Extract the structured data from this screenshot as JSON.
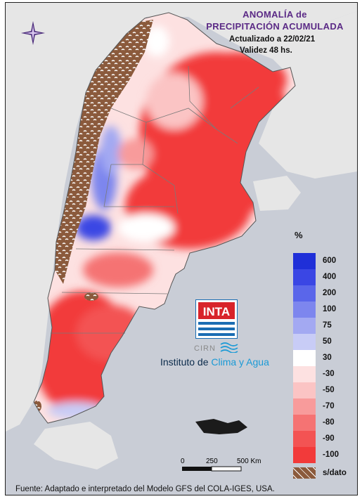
{
  "title": {
    "line1": "ANOMALÍA de",
    "line2": "PRECIPITACIÓN ACUMULADA",
    "updated": "Actualizado a 22/02/21",
    "validity": "Validez 48 hs."
  },
  "legend": {
    "unit": "%",
    "entries": [
      {
        "label": "600",
        "color": "#1f2fd8"
      },
      {
        "label": "400",
        "color": "#3a46e4"
      },
      {
        "label": "200",
        "color": "#5a66ea"
      },
      {
        "label": "100",
        "color": "#7d86ee"
      },
      {
        "label": "75",
        "color": "#a3a9f2"
      },
      {
        "label": "50",
        "color": "#c8ccf6"
      },
      {
        "label": "30",
        "color": "#ffffff"
      },
      {
        "label": "-30",
        "color": "#fde1e1"
      },
      {
        "label": "-50",
        "color": "#fbc4c4"
      },
      {
        "label": "-70",
        "color": "#f89b9b"
      },
      {
        "label": "-80",
        "color": "#f57373"
      },
      {
        "label": "-90",
        "color": "#f35353"
      },
      {
        "label": "-100",
        "color": "#f23a3a"
      }
    ],
    "nodata_label": "s/dato",
    "nodata_color": "#8b5a3c"
  },
  "logo": {
    "inta": "INTA",
    "cirn": "CIRN",
    "institute_prefix": "Instituto de ",
    "institute_highlight": "Clima y Agua"
  },
  "scale": {
    "ticks": [
      "0",
      "250",
      "500 Km"
    ]
  },
  "source": "Fuente: Adaptado e interpretado del Modelo GFS del COLA-IGES, USA.",
  "colors": {
    "title": "#5b2a86",
    "background_land": "#e8e8e8",
    "background_sea": "#c9cdd6",
    "inta_blue": "#1a6db3",
    "inta_red": "#d8232a"
  }
}
